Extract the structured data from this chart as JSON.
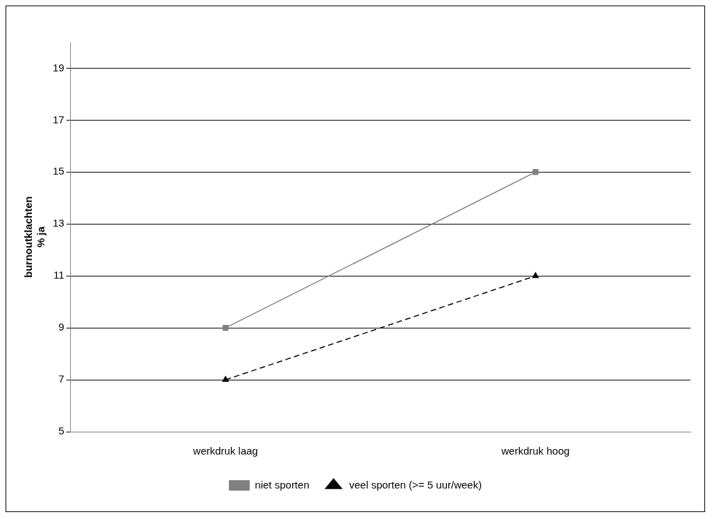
{
  "chart_data": {
    "type": "line",
    "ylabel": "burnoutklachten\n% ja",
    "categories": [
      "werkdruk laag",
      "werkdruk hoog"
    ],
    "series": [
      {
        "name": "niet sporten",
        "color": "#808080",
        "values": [
          9,
          15
        ],
        "marker": "square",
        "line_style": "solid"
      },
      {
        "name": "veel sporten (>= 5 uur/week)",
        "color": "#000000",
        "values": [
          7,
          11
        ],
        "marker": "triangle",
        "line_style": "dashed"
      }
    ],
    "ylim": [
      5,
      20
    ],
    "yticks": [
      5,
      7,
      9,
      11,
      13,
      15,
      17,
      19
    ],
    "grid": "y",
    "legend": "bottom"
  }
}
